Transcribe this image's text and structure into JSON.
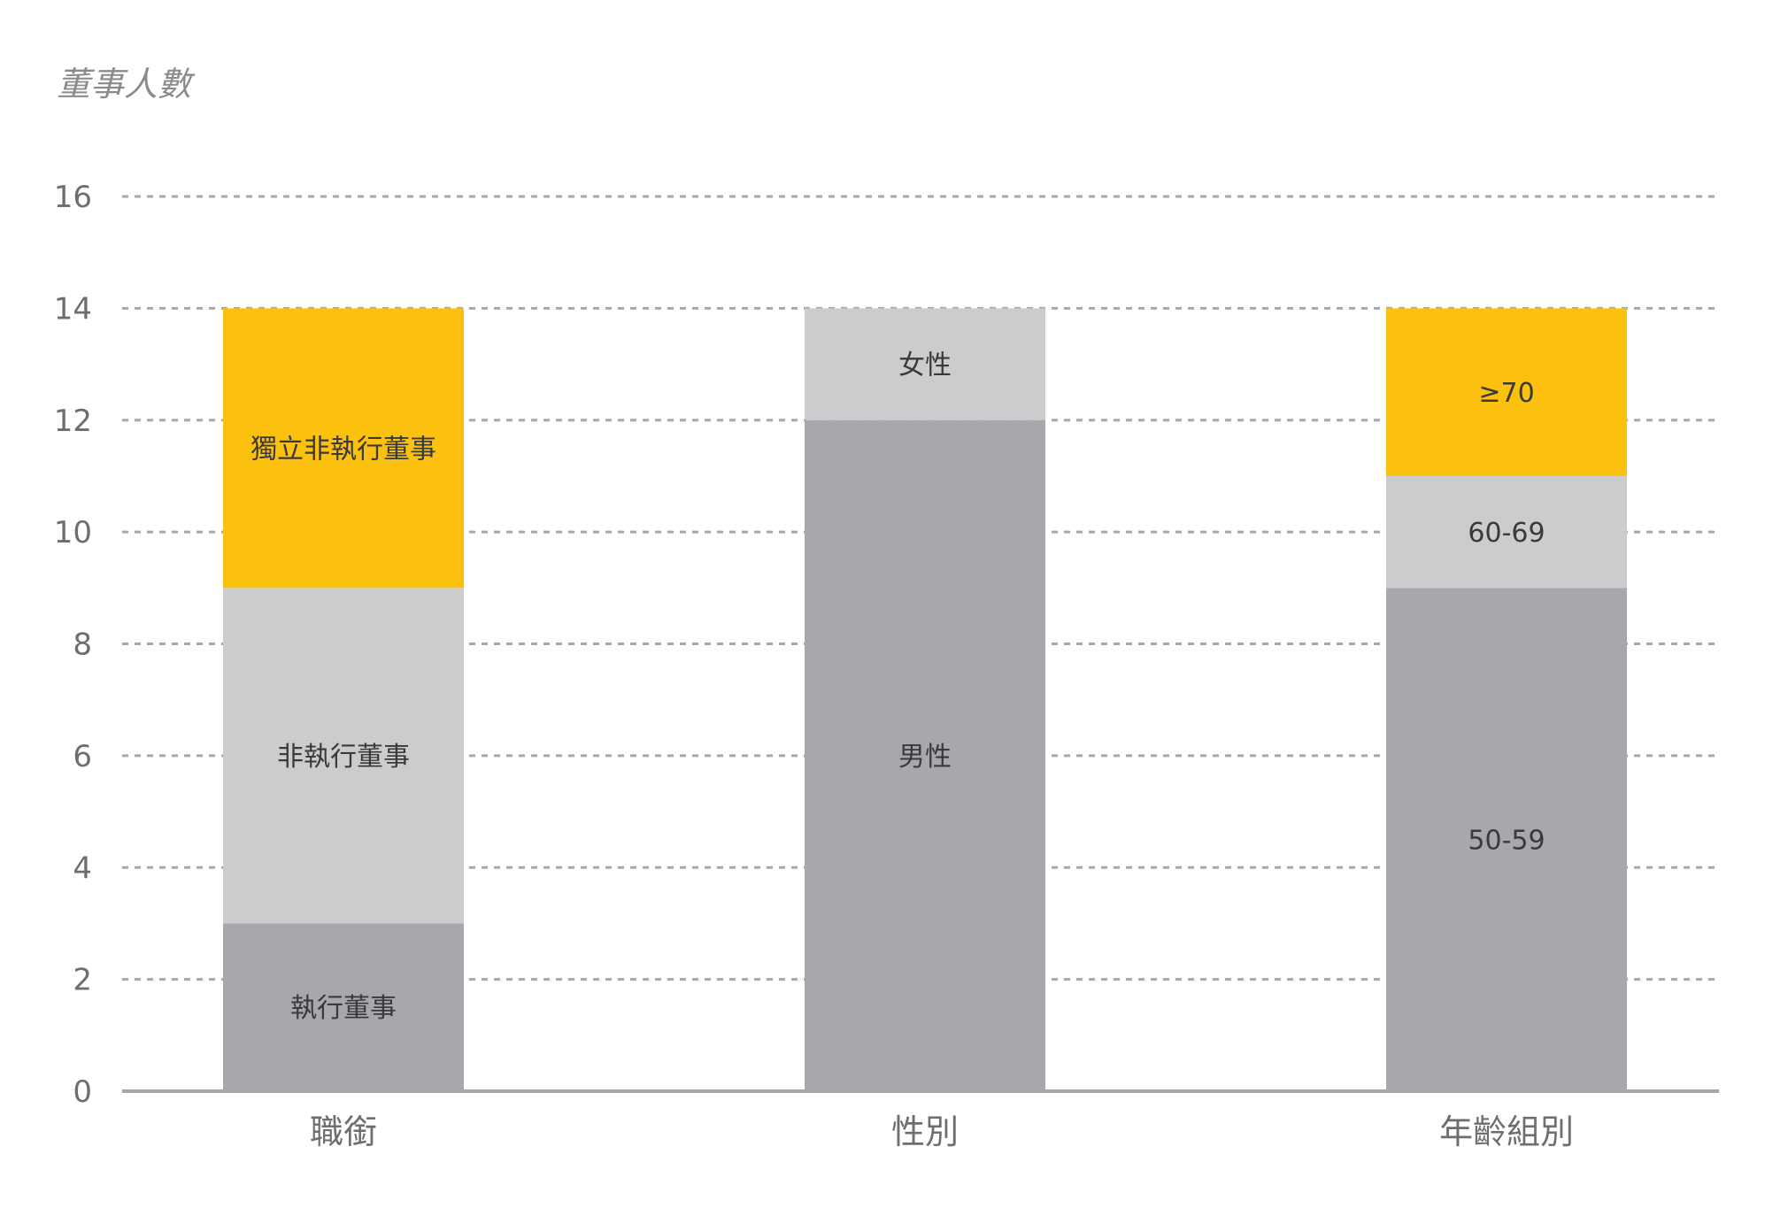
{
  "chart_data": {
    "type": "bar",
    "stacked": true,
    "title": "",
    "xlabel": "",
    "ylabel": "董事人數",
    "ylim": [
      0,
      16
    ],
    "yticks": [
      0,
      2,
      4,
      6,
      8,
      10,
      12,
      14,
      16
    ],
    "grid": true,
    "legend": "none",
    "categories": [
      "職銜",
      "性別",
      "年齡組別"
    ],
    "bars": [
      {
        "category": "職銜",
        "segments": [
          {
            "label": "執行董事",
            "value": 3,
            "color": "#a7a8ab"
          },
          {
            "label": "非執行董事",
            "value": 6,
            "color": "#cbccce"
          },
          {
            "label": "獨立非執行董事",
            "value": 5,
            "color": "#fcc10f"
          }
        ]
      },
      {
        "category": "性別",
        "segments": [
          {
            "label": "男性",
            "value": 12,
            "color": "#a7a8ab"
          },
          {
            "label": "女性",
            "value": 2,
            "color": "#cbccce"
          }
        ]
      },
      {
        "category": "年齡組別",
        "segments": [
          {
            "label": "50-59",
            "value": 9,
            "color": "#a7a8ab"
          },
          {
            "label": "60-69",
            "value": 2,
            "color": "#cbccce"
          },
          {
            "label": "≥70",
            "value": 3,
            "color": "#fcc10f"
          }
        ]
      }
    ],
    "colors": {
      "grid": "#a7a8ab",
      "axis": "#a7a8ab",
      "tick_text": "#6d6e71",
      "label_text": "#3a3a3c"
    }
  }
}
